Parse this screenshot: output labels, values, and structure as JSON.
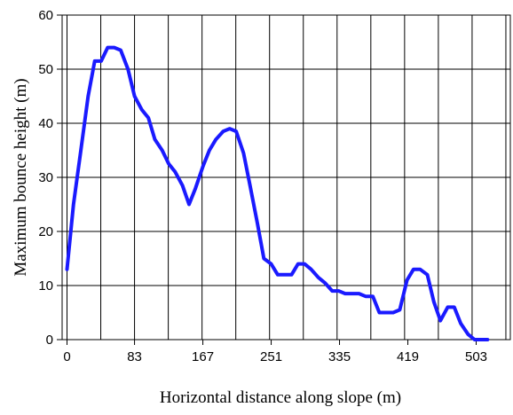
{
  "chart_data": {
    "type": "line",
    "title": "",
    "xlabel": "Horizontal distance along slope (m)",
    "ylabel": "Maximum bounce height (m)",
    "xlim": [
      -6,
      545
    ],
    "ylim": [
      0,
      60
    ],
    "xticks": [
      0,
      83,
      167,
      251,
      335,
      419,
      503
    ],
    "yticks": [
      0,
      10,
      20,
      30,
      40,
      50,
      60
    ],
    "grid": true,
    "line_color": "#1a1aff",
    "series": [
      {
        "x": [
          0,
          8,
          17,
          26,
          34,
          42,
          50,
          58,
          66,
          75,
          83,
          92,
          100,
          108,
          117,
          125,
          133,
          142,
          150,
          158,
          167,
          175,
          183,
          192,
          200,
          208,
          217,
          225,
          234,
          242,
          251,
          259,
          267,
          276,
          284,
          292,
          300,
          309,
          317,
          326,
          334,
          342,
          351,
          359,
          367,
          376,
          384,
          393,
          401,
          409,
          418,
          426,
          434,
          443,
          451,
          459,
          468,
          476,
          484,
          493,
          501,
          509,
          517
        ],
        "y": [
          13,
          25,
          35,
          45,
          51.5,
          51.5,
          54,
          54,
          53.5,
          50,
          45,
          42.5,
          41,
          37,
          35,
          32.5,
          31,
          28.5,
          25,
          28,
          32,
          35,
          37,
          38.5,
          39,
          38.5,
          34.5,
          28.5,
          21.5,
          15,
          14,
          12,
          12,
          12,
          14,
          14,
          13,
          11.5,
          10.5,
          9,
          9,
          8.5,
          8.5,
          8.5,
          8,
          8,
          5,
          5,
          5,
          5.5,
          11,
          13,
          13,
          12,
          7,
          3.5,
          6,
          6,
          3,
          1,
          0,
          0,
          0
        ]
      }
    ]
  }
}
